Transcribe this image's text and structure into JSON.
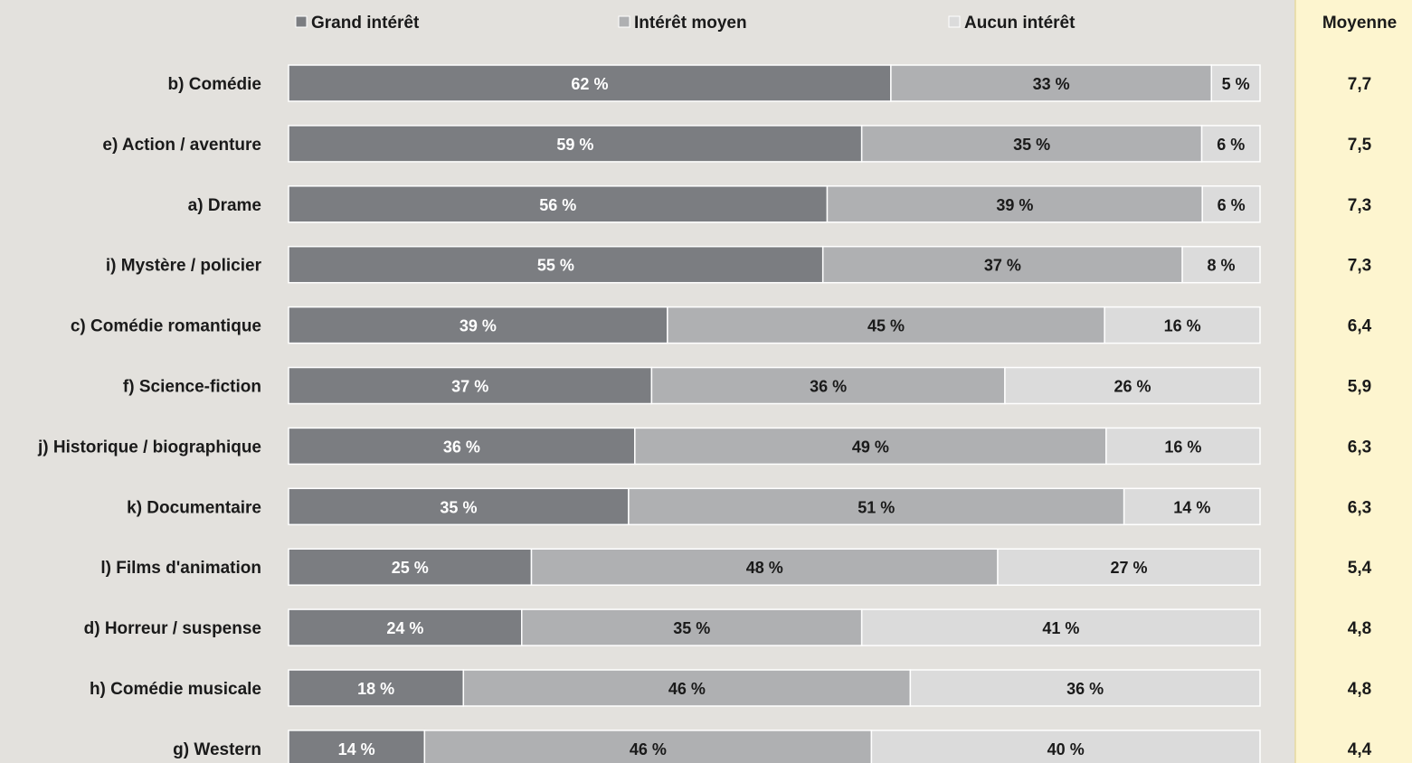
{
  "chart_data": {
    "type": "bar",
    "orientation": "horizontal",
    "stacked": true,
    "percent": true,
    "title": "",
    "xlabel": "",
    "ylabel": "",
    "xlim": [
      0,
      100
    ],
    "grid": false,
    "legend": {
      "position": "top",
      "entries": [
        "Grand intérêt",
        "Intérêt moyen",
        "Aucun intérêt"
      ]
    },
    "categories": [
      "b) Comédie",
      "e) Action / aventure",
      "a) Drame",
      "i) Mystère / policier",
      "c) Comédie romantique",
      "f) Science-fiction",
      "j) Historique / biographique",
      "k) Documentaire",
      "l) Films d'animation",
      "d) Horreur / suspense",
      "h) Comédie musicale",
      "g) Western"
    ],
    "series": [
      {
        "name": "Grand intérêt",
        "color": "#7b7d81",
        "text_color": "#ffffff",
        "values": [
          62,
          59,
          56,
          55,
          39,
          37,
          36,
          35,
          25,
          24,
          18,
          14
        ],
        "labels": [
          "62 %",
          "59 %",
          "56 %",
          "55 %",
          "39 %",
          "37 %",
          "36 %",
          "35 %",
          "25 %",
          "24 %",
          "18 %",
          "14 %"
        ]
      },
      {
        "name": "Intérêt moyen",
        "color": "#afb0b2",
        "text_color": "#1a1a1a",
        "values": [
          33,
          35,
          39,
          37,
          45,
          36,
          49,
          51,
          48,
          35,
          46,
          46
        ],
        "labels": [
          "33 %",
          "35 %",
          "39 %",
          "37 %",
          "45 %",
          "36 %",
          "49 %",
          "51 %",
          "48 %",
          "35 %",
          "46 %",
          "46 %"
        ]
      },
      {
        "name": "Aucun intérêt",
        "color": "#dbdbdb",
        "text_color": "#1a1a1a",
        "values": [
          5,
          6,
          6,
          8,
          16,
          26,
          16,
          14,
          27,
          41,
          36,
          40
        ],
        "labels": [
          "5 %",
          "6 %",
          "6 %",
          "8 %",
          "16 %",
          "26 %",
          "16 %",
          "14 %",
          "27 %",
          "41 %",
          "36 %",
          "40 %"
        ]
      }
    ],
    "average_column": {
      "header": "Moyenne",
      "values": [
        "7,7",
        "7,5",
        "7,3",
        "7,3",
        "6,4",
        "5,9",
        "6,3",
        "6,3",
        "5,4",
        "4,8",
        "4,8",
        "4,4"
      ],
      "background": "#fdf5cf",
      "border": "#e6d9a0"
    }
  }
}
